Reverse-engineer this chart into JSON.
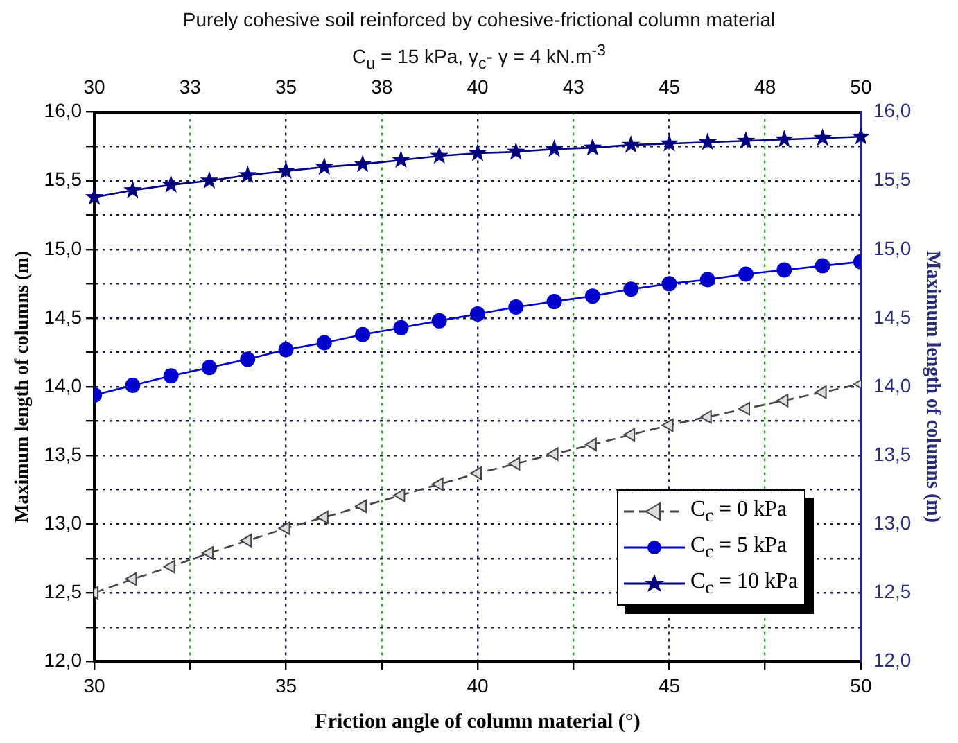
{
  "chart_data": {
    "type": "line",
    "title": "Purely cohesive soil reinforced by cohesive-frictional column material",
    "subtitle": "C$_{u}$ = 15 kPa, γ$_{c}$- γ = 4 kN.m$^{-3}$",
    "xlabel": "Friction angle of column material (°)",
    "ylabel": "Maximum length of columns (m)",
    "y2label": "Maximum length of columns (m)",
    "x": [
      30,
      31,
      32,
      33,
      34,
      35,
      36,
      37,
      38,
      39,
      40,
      41,
      42,
      43,
      44,
      45,
      46,
      47,
      48,
      49,
      50
    ],
    "series": [
      {
        "name": "C$_{c}$ = 0 kPa",
        "color": "#444444",
        "marker": "triangle",
        "line_style": "dashed",
        "values": [
          12.5,
          12.6,
          12.69,
          12.79,
          12.88,
          12.97,
          13.05,
          13.13,
          13.21,
          13.29,
          13.37,
          13.44,
          13.51,
          13.58,
          13.65,
          13.72,
          13.78,
          13.84,
          13.9,
          13.96,
          14.02
        ]
      },
      {
        "name": "C$_{c}$ = 5 kPa",
        "color": "#0000cc",
        "marker": "circle",
        "line_style": "solid",
        "values": [
          13.94,
          14.01,
          14.08,
          14.14,
          14.2,
          14.27,
          14.32,
          14.38,
          14.43,
          14.48,
          14.53,
          14.58,
          14.62,
          14.66,
          14.71,
          14.75,
          14.78,
          14.82,
          14.85,
          14.88,
          14.91
        ]
      },
      {
        "name": "C$_{c}$ = 10 kPa",
        "color": "#000080",
        "marker": "star",
        "line_style": "solid",
        "values": [
          15.38,
          15.43,
          15.47,
          15.5,
          15.54,
          15.57,
          15.6,
          15.62,
          15.65,
          15.68,
          15.7,
          15.71,
          15.73,
          15.74,
          15.76,
          15.77,
          15.78,
          15.79,
          15.8,
          15.81,
          15.82
        ]
      }
    ],
    "xlim": [
      30,
      50
    ],
    "xticks": [
      30,
      {
        "value": 32.5,
        "label": null
      },
      35,
      {
        "value": 37.5,
        "label": null
      },
      40,
      {
        "value": 42.5,
        "label": null
      },
      45,
      {
        "value": 47.5,
        "label": null
      },
      50
    ],
    "x2lim": [
      30,
      50
    ],
    "x2ticks": [
      30,
      {
        "value": 32.5,
        "label": "33"
      },
      35,
      {
        "value": 37.5,
        "label": "38"
      },
      40,
      {
        "value": 42.5,
        "label": "43"
      },
      45,
      {
        "value": 47.5,
        "label": "48"
      },
      50
    ],
    "ylim": [
      12,
      16
    ],
    "yticks": [
      {
        "value": 12,
        "label": "12,0"
      },
      {
        "value": 12.25,
        "label": null
      },
      {
        "value": 12.5,
        "label": "12,5"
      },
      {
        "value": 12.75,
        "label": null
      },
      {
        "value": 13,
        "label": "13,0"
      },
      {
        "value": 13.25,
        "label": null
      },
      {
        "value": 13.5,
        "label": "13,5"
      },
      {
        "value": 13.75,
        "label": null
      },
      {
        "value": 14,
        "label": "14,0"
      },
      {
        "value": 14.25,
        "label": null
      },
      {
        "value": 14.5,
        "label": "14,5"
      },
      {
        "value": 14.75,
        "label": null
      },
      {
        "value": 15,
        "label": "15,0"
      },
      {
        "value": 15.25,
        "label": null
      },
      {
        "value": 15.5,
        "label": "15,5"
      },
      {
        "value": 15.75,
        "label": null
      },
      {
        "value": 16,
        "label": "16,0"
      }
    ],
    "y2lim": [
      12,
      16
    ],
    "y2ticks": [
      {
        "value": 12,
        "label": "12,0"
      },
      {
        "value": 12.25,
        "label": null
      },
      {
        "value": 12.5,
        "label": "12,5"
      },
      {
        "value": 12.75,
        "label": null
      },
      {
        "value": 13,
        "label": "13,0"
      },
      {
        "value": 13.25,
        "label": null
      },
      {
        "value": 13.5,
        "label": "13,5"
      },
      {
        "value": 13.75,
        "label": null
      },
      {
        "value": 14,
        "label": "14,0"
      },
      {
        "value": 14.25,
        "label": null
      },
      {
        "value": 14.5,
        "label": "14,5"
      },
      {
        "value": 14.75,
        "label": null
      },
      {
        "value": 15,
        "label": "15,0"
      },
      {
        "value": 15.25,
        "label": null
      },
      {
        "value": 15.5,
        "label": "15,5"
      },
      {
        "value": 15.75,
        "label": null
      },
      {
        "value": 16,
        "label": "16,0"
      }
    ],
    "grid": true,
    "legend": "bottom right"
  }
}
